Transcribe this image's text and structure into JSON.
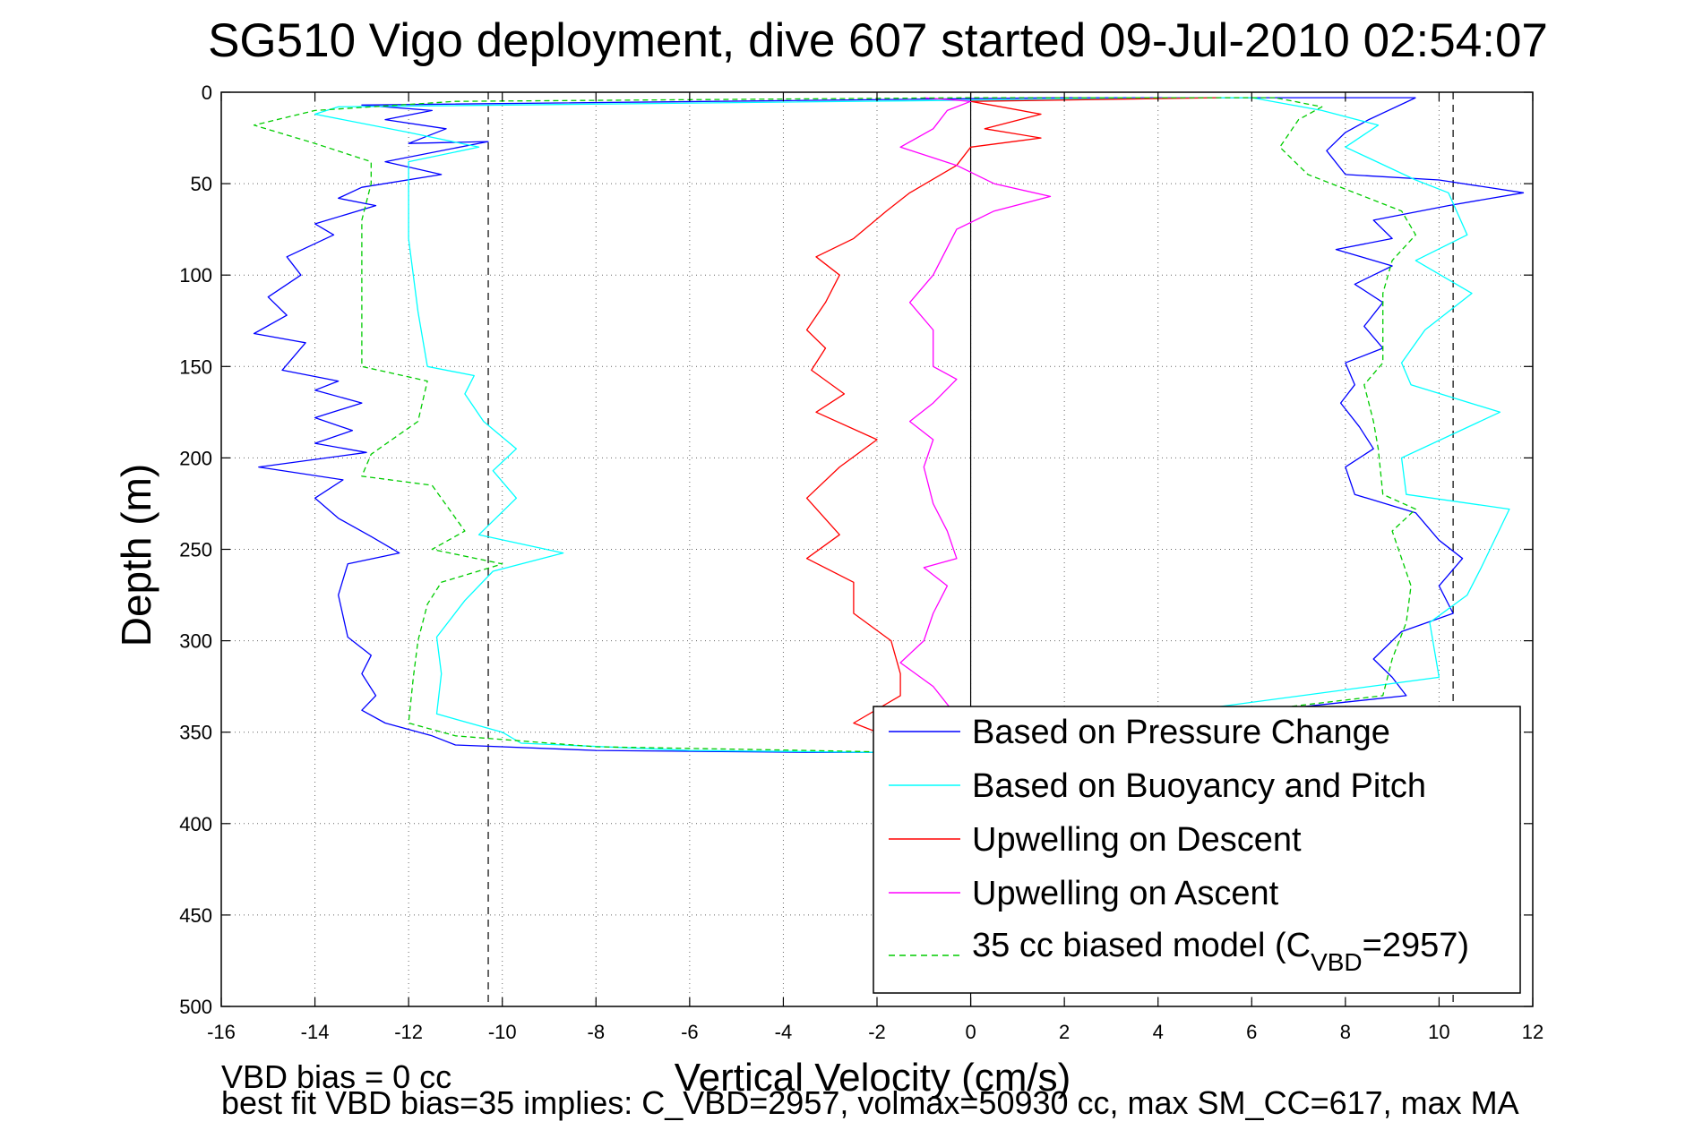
{
  "chart_data": {
    "type": "line",
    "title": "SG510 Vigo deployment, dive 607 started 09-Jul-2010 02:54:07",
    "xlabel": "Vertical Velocity (cm/s)",
    "ylabel": "Depth (m)",
    "xlim": [
      -16,
      12
    ],
    "ylim": [
      0,
      500
    ],
    "y_reversed": true,
    "grid": true,
    "xticks": [
      "-16",
      "-14",
      "-12",
      "-10",
      "-8",
      "-6",
      "-4",
      "-2",
      "0",
      "2",
      "4",
      "6",
      "8",
      "10",
      "12"
    ],
    "yticks": [
      "0",
      "50",
      "100",
      "150",
      "200",
      "250",
      "300",
      "350",
      "400",
      "450",
      "500"
    ],
    "reference_lines": [
      -10.3,
      0,
      10.3
    ],
    "legend_position": "bottom-right",
    "legend": {
      "entries": [
        {
          "label": "Based on Pressure Change",
          "color": "#0000ff",
          "dash": "solid"
        },
        {
          "label": "Based on Buoyancy and Pitch",
          "color": "#00ffff",
          "dash": "solid"
        },
        {
          "label": "Upwelling on Descent",
          "color": "#ff0000",
          "dash": "solid"
        },
        {
          "label": "Upwelling on Ascent",
          "color": "#ff00ff",
          "dash": "solid"
        },
        {
          "label": "35 cc biased model (C",
          "sub": "VBD",
          "tail": "=2957)",
          "color": "#00cc00",
          "dash": "dashed"
        }
      ]
    },
    "footer_lines": [
      "VBD bias = 0 cc",
      "best fit VBD bias=35 implies: C_VBD=2957, volmax=50930 cc, max SM_CC=617, max MA"
    ],
    "series": [
      {
        "name": "Based on Pressure Change",
        "color": "#0000ff",
        "dash": "solid",
        "segments": [
          [
            [
              9.5,
              3
            ],
            [
              2,
              3
            ],
            [
              -13,
              7
            ],
            [
              -11.5,
              10
            ],
            [
              -12.5,
              15
            ],
            [
              -11.2,
              20
            ],
            [
              -12,
              28
            ],
            [
              -10.3,
              27
            ],
            [
              -12.5,
              38
            ],
            [
              -11.3,
              45
            ],
            [
              -13,
              52
            ],
            [
              -13.5,
              58
            ],
            [
              -12.7,
              62
            ],
            [
              -14,
              72
            ],
            [
              -13.6,
              78
            ],
            [
              -14.6,
              90
            ],
            [
              -14.3,
              100
            ],
            [
              -15,
              112
            ],
            [
              -14.6,
              122
            ],
            [
              -15.3,
              132
            ],
            [
              -14.2,
              137
            ],
            [
              -14.7,
              152
            ],
            [
              -13.5,
              158
            ],
            [
              -14,
              163
            ],
            [
              -13,
              170
            ],
            [
              -14,
              178
            ],
            [
              -13.2,
              185
            ],
            [
              -14,
              192
            ],
            [
              -12.9,
              197
            ],
            [
              -15.2,
              205
            ],
            [
              -13.4,
              212
            ],
            [
              -14,
              222
            ],
            [
              -13.5,
              233
            ],
            [
              -12.8,
              243
            ],
            [
              -12.2,
              252
            ],
            [
              -13.3,
              258
            ],
            [
              -13.5,
              275
            ],
            [
              -13.3,
              298
            ],
            [
              -12.8,
              308
            ],
            [
              -13,
              318
            ],
            [
              -12.7,
              330
            ],
            [
              -13,
              338
            ],
            [
              -12.5,
              345
            ],
            [
              -11.5,
              352
            ],
            [
              -11,
              357
            ],
            [
              -8,
              360
            ],
            [
              -3.5,
              361
            ],
            [
              -2,
              361
            ]
          ],
          [
            [
              -2,
              361
            ],
            [
              9.3,
              330
            ],
            [
              9,
              320
            ],
            [
              8.6,
              310
            ],
            [
              9.2,
              295
            ],
            [
              10.3,
              285
            ],
            [
              10,
              270
            ],
            [
              10.5,
              255
            ],
            [
              10,
              245
            ],
            [
              9.5,
              230
            ],
            [
              8.2,
              220
            ],
            [
              8,
              205
            ],
            [
              8.6,
              195
            ],
            [
              8.3,
              183
            ],
            [
              7.9,
              170
            ],
            [
              8.2,
              160
            ],
            [
              8,
              148
            ],
            [
              8.8,
              140
            ],
            [
              8.4,
              128
            ],
            [
              8.8,
              115
            ],
            [
              8.2,
              105
            ],
            [
              9,
              95
            ],
            [
              7.8,
              86
            ],
            [
              9,
              80
            ],
            [
              8.6,
              70
            ],
            [
              10.2,
              62
            ],
            [
              11.8,
              55
            ],
            [
              10,
              48
            ],
            [
              8,
              45
            ],
            [
              7.6,
              32
            ],
            [
              8,
              22
            ],
            [
              8.5,
              15
            ],
            [
              9.5,
              3
            ]
          ]
        ]
      },
      {
        "name": "Based on Buoyancy and Pitch",
        "color": "#00ffff",
        "dash": "solid",
        "segments": [
          [
            [
              5,
              3
            ],
            [
              -13.5,
              8
            ],
            [
              -14,
              12
            ],
            [
              -12,
              22
            ],
            [
              -10.5,
              30
            ],
            [
              -12,
              38
            ],
            [
              -12,
              80
            ],
            [
              -11.8,
              120
            ],
            [
              -11.6,
              150
            ],
            [
              -10.6,
              155
            ],
            [
              -10.8,
              165
            ],
            [
              -10.4,
              180
            ],
            [
              -9.7,
              195
            ],
            [
              -10.2,
              207
            ],
            [
              -9.7,
              222
            ],
            [
              -10.5,
              242
            ],
            [
              -8.7,
              252
            ],
            [
              -10.2,
              262
            ],
            [
              -10.8,
              278
            ],
            [
              -11.4,
              298
            ],
            [
              -11.3,
              318
            ],
            [
              -11.4,
              340
            ],
            [
              -10,
              350
            ],
            [
              -9.6,
              356
            ],
            [
              -6,
              360
            ],
            [
              -2,
              361
            ]
          ],
          [
            [
              -2,
              361
            ],
            [
              10,
              320
            ],
            [
              9.8,
              290
            ],
            [
              10.6,
              275
            ],
            [
              10.9,
              260
            ],
            [
              11.5,
              228
            ],
            [
              9.3,
              220
            ],
            [
              9.2,
              200
            ],
            [
              11.3,
              175
            ],
            [
              9.4,
              160
            ],
            [
              9.2,
              148
            ],
            [
              9.7,
              130
            ],
            [
              10.7,
              110
            ],
            [
              9.5,
              92
            ],
            [
              10.6,
              78
            ],
            [
              10.2,
              55
            ],
            [
              9.5,
              48
            ],
            [
              8,
              30
            ],
            [
              8.7,
              18
            ],
            [
              7.5,
              10
            ],
            [
              6,
              3
            ],
            [
              5,
              3
            ]
          ]
        ]
      },
      {
        "name": "Upwelling on Descent",
        "color": "#ff0000",
        "dash": "solid",
        "segments": [
          [
            [
              5.3,
              3
            ],
            [
              0,
              5
            ],
            [
              1.5,
              12
            ],
            [
              0.3,
              20
            ],
            [
              1.5,
              25
            ],
            [
              0,
              30
            ],
            [
              -0.3,
              40
            ],
            [
              -1.3,
              55
            ],
            [
              -1.8,
              65
            ],
            [
              -2.5,
              80
            ],
            [
              -3.3,
              90
            ],
            [
              -2.8,
              100
            ],
            [
              -3.1,
              115
            ],
            [
              -3.5,
              130
            ],
            [
              -3.1,
              140
            ],
            [
              -3.4,
              152
            ],
            [
              -2.7,
              165
            ],
            [
              -3.3,
              175
            ],
            [
              -2,
              190
            ],
            [
              -2.8,
              205
            ],
            [
              -3.5,
              222
            ],
            [
              -2.8,
              242
            ],
            [
              -3.5,
              255
            ],
            [
              -2.5,
              268
            ],
            [
              -2.5,
              285
            ],
            [
              -1.7,
              300
            ],
            [
              -1.5,
              318
            ],
            [
              -1.5,
              330
            ],
            [
              -2.5,
              345
            ],
            [
              -1.5,
              355
            ],
            [
              -1.5,
              360
            ]
          ]
        ]
      },
      {
        "name": "Upwelling on Ascent",
        "color": "#ff00ff",
        "dash": "solid",
        "segments": [
          [
            [
              -1.5,
              360
            ],
            [
              -1,
              352
            ],
            [
              -0.4,
              338
            ],
            [
              -0.8,
              325
            ],
            [
              -1.5,
              312
            ],
            [
              -1,
              300
            ],
            [
              -0.8,
              285
            ],
            [
              -0.5,
              270
            ],
            [
              -1,
              260
            ],
            [
              -0.3,
              255
            ],
            [
              -0.5,
              240
            ],
            [
              -0.8,
              225
            ],
            [
              -1,
              205
            ],
            [
              -0.8,
              190
            ],
            [
              -1.3,
              180
            ],
            [
              -0.8,
              170
            ],
            [
              -0.3,
              157
            ],
            [
              -0.8,
              150
            ],
            [
              -0.8,
              130
            ],
            [
              -1.3,
              115
            ],
            [
              -0.8,
              100
            ],
            [
              -0.5,
              85
            ],
            [
              -0.3,
              75
            ],
            [
              0.5,
              65
            ],
            [
              1.7,
              57
            ],
            [
              0.5,
              50
            ],
            [
              -0.3,
              40
            ],
            [
              -1.5,
              30
            ],
            [
              -0.8,
              20
            ],
            [
              -0.5,
              10
            ],
            [
              0,
              5
            ],
            [
              -1,
              3
            ]
          ]
        ]
      },
      {
        "name": "35 cc biased model (C_VBD=2957)",
        "color": "#00cc00",
        "dash": "dashed",
        "segments": [
          [
            [
              6.5,
              3
            ],
            [
              0,
              3
            ],
            [
              -11,
              5
            ],
            [
              -14,
              10
            ],
            [
              -15.3,
              18
            ],
            [
              -14,
              28
            ],
            [
              -12.8,
              38
            ],
            [
              -12.8,
              50
            ],
            [
              -13,
              70
            ],
            [
              -13,
              100
            ],
            [
              -13,
              130
            ],
            [
              -13,
              150
            ],
            [
              -11.6,
              158
            ],
            [
              -11.8,
              180
            ],
            [
              -12.8,
              198
            ],
            [
              -13,
              210
            ],
            [
              -11.5,
              215
            ],
            [
              -10.8,
              240
            ],
            [
              -11.5,
              250
            ],
            [
              -10,
              258
            ],
            [
              -11.3,
              268
            ],
            [
              -11.6,
              280
            ],
            [
              -11.8,
              300
            ],
            [
              -11.9,
              320
            ],
            [
              -12,
              345
            ],
            [
              -11,
              352
            ],
            [
              -8,
              358
            ],
            [
              -3.5,
              360
            ],
            [
              -1.5,
              361
            ]
          ],
          [
            [
              -1.5,
              361
            ],
            [
              8.8,
              330
            ],
            [
              9,
              310
            ],
            [
              9.3,
              290
            ],
            [
              9.4,
              270
            ],
            [
              9,
              240
            ],
            [
              9.5,
              228
            ],
            [
              8.8,
              220
            ],
            [
              8.7,
              195
            ],
            [
              8.6,
              180
            ],
            [
              8.4,
              160
            ],
            [
              8.8,
              148
            ],
            [
              8.8,
              130
            ],
            [
              8.8,
              110
            ],
            [
              9,
              92
            ],
            [
              9.5,
              78
            ],
            [
              9.2,
              65
            ],
            [
              8.2,
              55
            ],
            [
              7.2,
              45
            ],
            [
              6.6,
              30
            ],
            [
              7,
              15
            ],
            [
              7.5,
              8
            ],
            [
              6.5,
              3
            ]
          ]
        ]
      }
    ]
  }
}
